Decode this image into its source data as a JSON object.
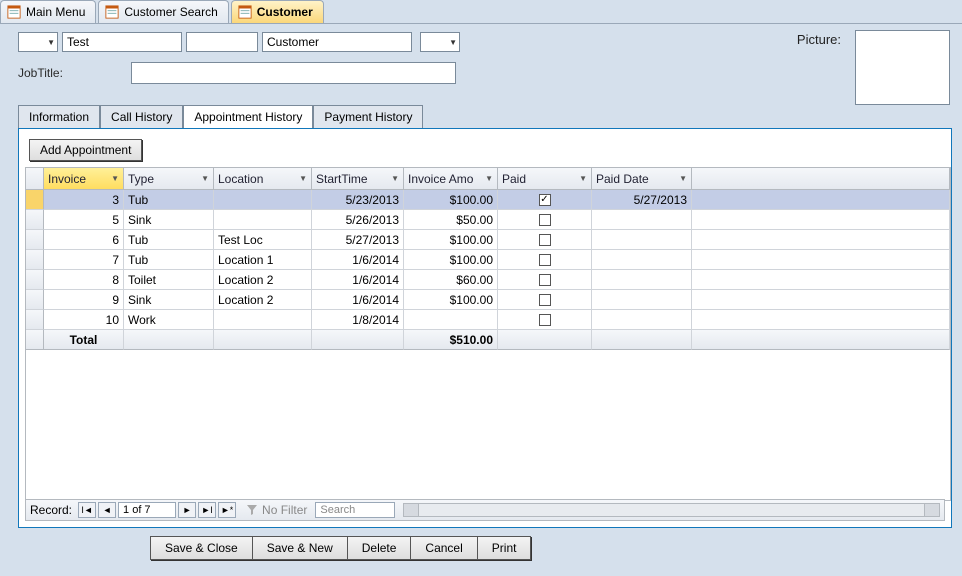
{
  "top_tabs": {
    "main_menu": "Main Menu",
    "customer_search": "Customer Search",
    "customer": "Customer"
  },
  "form": {
    "first_name": "Test",
    "last_name": "Customer",
    "jobtitle_label": "JobTitle:",
    "jobtitle_value": "",
    "picture_label": "Picture:"
  },
  "inner_tabs": {
    "information": "Information",
    "call_history": "Call History",
    "appointment_history": "Appointment History",
    "payment_history": "Payment History"
  },
  "buttons": {
    "add_appointment": "Add Appointment",
    "save_close": "Save & Close",
    "save_new": "Save & New",
    "delete": "Delete",
    "cancel": "Cancel",
    "print": "Print"
  },
  "grid": {
    "columns": {
      "invoice": "Invoice",
      "type": "Type",
      "location": "Location",
      "starttime": "StartTime",
      "invoice_amt": "Invoice Amo",
      "paid": "Paid",
      "paid_date": "Paid Date"
    },
    "rows": [
      {
        "invoice": "3",
        "type": "Tub",
        "location": "",
        "start": "5/23/2013",
        "amt": "$100.00",
        "paid": true,
        "paid_date": "5/27/2013"
      },
      {
        "invoice": "5",
        "type": "Sink",
        "location": "",
        "start": "5/26/2013",
        "amt": "$50.00",
        "paid": false,
        "paid_date": ""
      },
      {
        "invoice": "6",
        "type": "Tub",
        "location": "Test Loc",
        "start": "5/27/2013",
        "amt": "$100.00",
        "paid": false,
        "paid_date": ""
      },
      {
        "invoice": "7",
        "type": "Tub",
        "location": "Location 1",
        "start": "1/6/2014",
        "amt": "$100.00",
        "paid": false,
        "paid_date": ""
      },
      {
        "invoice": "8",
        "type": "Toilet",
        "location": "Location 2",
        "start": "1/6/2014",
        "amt": "$60.00",
        "paid": false,
        "paid_date": ""
      },
      {
        "invoice": "9",
        "type": "Sink",
        "location": "Location 2",
        "start": "1/6/2014",
        "amt": "$100.00",
        "paid": false,
        "paid_date": ""
      },
      {
        "invoice": "10",
        "type": "Work",
        "location": "",
        "start": "1/8/2014",
        "amt": "",
        "paid": false,
        "paid_date": ""
      }
    ],
    "total_label": "Total",
    "total_amt": "$510.00"
  },
  "recordnav": {
    "label": "Record:",
    "position": "1 of 7",
    "no_filter": "No Filter",
    "search": "Search"
  }
}
